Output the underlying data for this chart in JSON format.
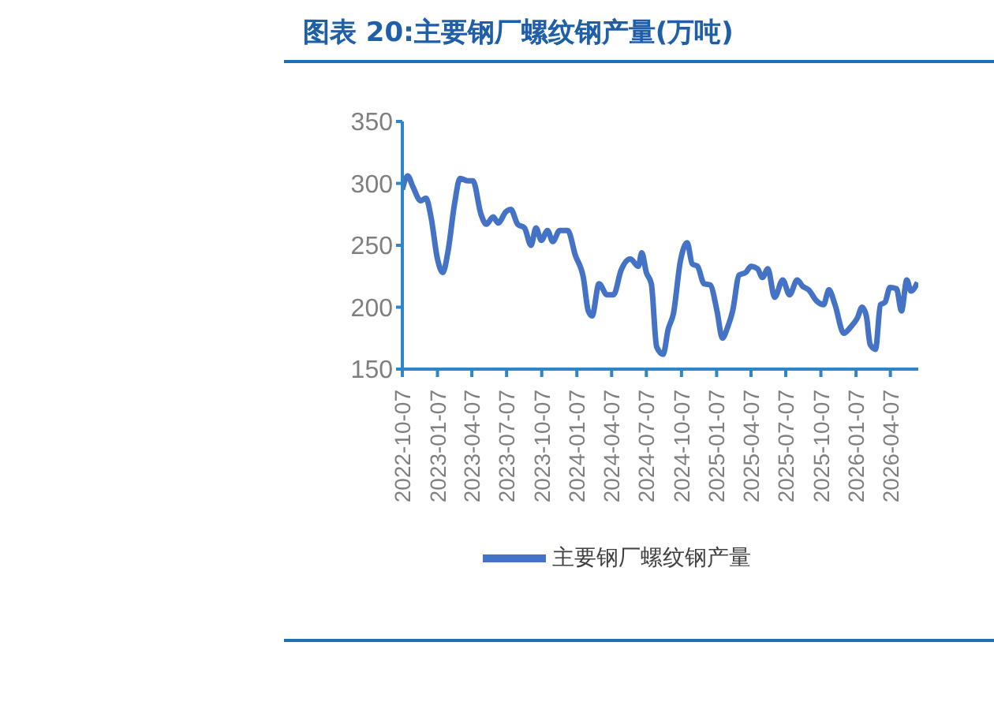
{
  "chart_data": {
    "type": "line",
    "title": "图表 20:主要钢厂螺纹钢产量(万吨)",
    "x": [
      "2022-10-07",
      "2022-10-21",
      "2022-11-04",
      "2022-11-24",
      "2022-12-08",
      "2022-12-21",
      "2023-01-07",
      "2023-01-21",
      "2023-02-03",
      "2023-02-21",
      "2023-03-07",
      "2023-03-28",
      "2023-04-10",
      "2023-05-01",
      "2023-05-15",
      "2023-06-02",
      "2023-06-15",
      "2023-07-05",
      "2023-07-18",
      "2023-08-05",
      "2023-08-23",
      "2023-09-09",
      "2023-09-22",
      "2023-10-06",
      "2023-10-22",
      "2023-11-05",
      "2023-11-23",
      "2023-12-14",
      "2024-01-03",
      "2024-01-24",
      "2024-02-06",
      "2024-02-16",
      "2024-03-05",
      "2024-03-26",
      "2024-04-12",
      "2024-05-02",
      "2024-05-26",
      "2024-06-16",
      "2024-06-25",
      "2024-07-07",
      "2024-07-20",
      "2024-08-03",
      "2024-08-20",
      "2024-09-02",
      "2024-09-16",
      "2024-10-04",
      "2024-10-22",
      "2024-11-04",
      "2024-11-18",
      "2024-12-05",
      "2024-12-21",
      "2025-01-08",
      "2025-01-22",
      "2025-02-05",
      "2025-02-18",
      "2025-03-07",
      "2025-03-24",
      "2025-04-07",
      "2025-04-24",
      "2025-05-07",
      "2025-05-21",
      "2025-06-08",
      "2025-06-29",
      "2025-07-17",
      "2025-08-06",
      "2025-08-20",
      "2025-09-05",
      "2025-09-26",
      "2025-10-14",
      "2025-10-28",
      "2025-11-13",
      "2025-12-06",
      "2025-12-24",
      "2026-01-10",
      "2026-01-23",
      "2026-02-03",
      "2026-02-13",
      "2026-02-27",
      "2026-03-12",
      "2026-03-24",
      "2026-04-06",
      "2026-04-23",
      "2026-05-06",
      "2026-05-20",
      "2026-05-31",
      "2026-06-17"
    ],
    "series": [
      {
        "name": "主要钢厂螺纹钢产量",
        "color": "#4472c4",
        "values": [
          295,
          306,
          297,
          286,
          288,
          273,
          239,
          228,
          244,
          284,
          304,
          302,
          302,
          275,
          267,
          273,
          268,
          277,
          279,
          267,
          264,
          250,
          264,
          254,
          262,
          253,
          262,
          262,
          242,
          224,
          197,
          193,
          219,
          210,
          210,
          230,
          239,
          233,
          244,
          228,
          219,
          168,
          162,
          182,
          195,
          237,
          252,
          235,
          233,
          219,
          218,
          197,
          175,
          184,
          197,
          226,
          228,
          233,
          231,
          224,
          231,
          208,
          222,
          210,
          222,
          217,
          214,
          205,
          202,
          214,
          202,
          179,
          184,
          191,
          200,
          193,
          170,
          166,
          202,
          204,
          216,
          215,
          197,
          222,
          213,
          220
        ]
      }
    ],
    "xlim": [
      "2022-10-07",
      "2026-06-19"
    ],
    "xticks": [
      "2022-10-07",
      "2023-01-07",
      "2023-04-07",
      "2023-07-07",
      "2023-10-07",
      "2024-01-07",
      "2024-04-07",
      "2024-07-07",
      "2024-10-07",
      "2025-01-07",
      "2025-04-07",
      "2025-07-07",
      "2025-10-07",
      "2026-01-07",
      "2026-04-07"
    ],
    "ylim": [
      150,
      350
    ],
    "yticks": [
      150,
      200,
      250,
      300,
      350
    ],
    "grid": false,
    "legend": "bottom",
    "marker": "none",
    "line_style": "solid"
  }
}
